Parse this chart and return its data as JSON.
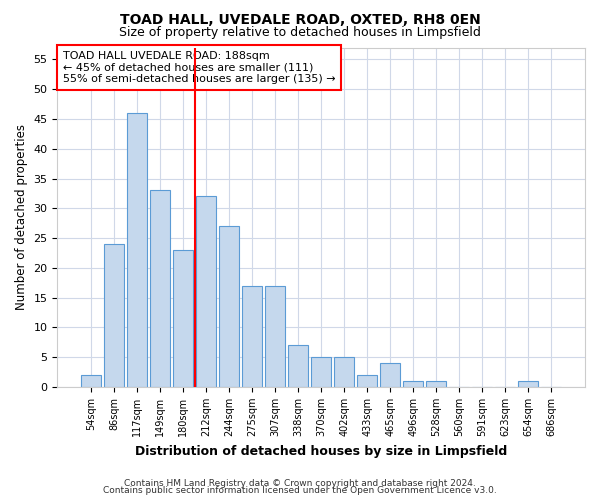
{
  "title": "TOAD HALL, UVEDALE ROAD, OXTED, RH8 0EN",
  "subtitle": "Size of property relative to detached houses in Limpsfield",
  "xlabel": "Distribution of detached houses by size in Limpsfield",
  "ylabel": "Number of detached properties",
  "footnote1": "Contains HM Land Registry data © Crown copyright and database right 2024.",
  "footnote2": "Contains public sector information licensed under the Open Government Licence v3.0.",
  "bar_labels": [
    "54sqm",
    "86sqm",
    "117sqm",
    "149sqm",
    "180sqm",
    "212sqm",
    "244sqm",
    "275sqm",
    "307sqm",
    "338sqm",
    "370sqm",
    "402sqm",
    "433sqm",
    "465sqm",
    "496sqm",
    "528sqm",
    "560sqm",
    "591sqm",
    "623sqm",
    "654sqm",
    "686sqm"
  ],
  "bar_values": [
    2,
    24,
    46,
    33,
    23,
    32,
    27,
    17,
    17,
    7,
    5,
    5,
    2,
    4,
    1,
    1,
    0,
    0,
    0,
    1,
    0
  ],
  "bar_color": "#c5d8ed",
  "bar_edge_color": "#5b9bd5",
  "vline_x": 4.5,
  "vline_color": "red",
  "ylim": [
    0,
    57
  ],
  "yticks": [
    0,
    5,
    10,
    15,
    20,
    25,
    30,
    35,
    40,
    45,
    50,
    55
  ],
  "annotation_box_text": "TOAD HALL UVEDALE ROAD: 188sqm\n← 45% of detached houses are smaller (111)\n55% of semi-detached houses are larger (135) →",
  "bg_color": "#ffffff",
  "grid_color": "#d0d8e8"
}
